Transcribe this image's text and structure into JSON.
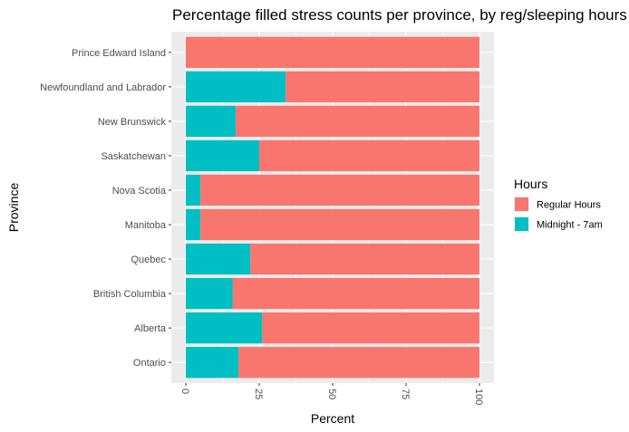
{
  "chart_data": {
    "type": "bar",
    "orientation": "horizontal",
    "stacked": true,
    "title": "Percentage filled stress counts per province, by reg/sleeping hours",
    "xlabel": "Percent",
    "ylabel": "Province",
    "xlim": [
      0,
      100
    ],
    "xticks": [
      0,
      25,
      50,
      75,
      100
    ],
    "grid": true,
    "legend": {
      "title": "Hours",
      "position": "right"
    },
    "categories": [
      "Prince Edward Island",
      "Newfoundland and Labrador",
      "New Brunswick",
      "Saskatchewan",
      "Nova Scotia",
      "Manitoba",
      "Quebec",
      "British Columbia",
      "Alberta",
      "Ontario"
    ],
    "series": [
      {
        "name": "Midnight - 7am",
        "color": "#00BFC4",
        "values": [
          0,
          34,
          17,
          25,
          5,
          5,
          22,
          16,
          26,
          18
        ]
      },
      {
        "name": "Regular Hours",
        "color": "#F8766D",
        "values": [
          100,
          66,
          83,
          75,
          95,
          95,
          78,
          84,
          74,
          82
        ]
      }
    ],
    "legend_order": [
      "Regular Hours",
      "Midnight - 7am"
    ]
  }
}
